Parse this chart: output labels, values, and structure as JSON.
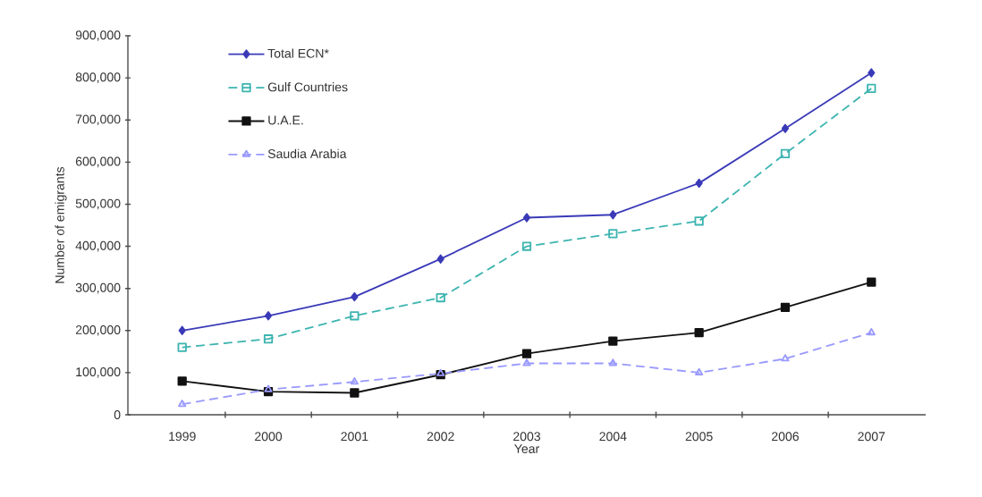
{
  "chart_data": {
    "type": "line",
    "xlabel": "Year",
    "ylabel": "Number of emigrants",
    "categories": [
      "1999",
      "2000",
      "2001",
      "2002",
      "2003",
      "2004",
      "2005",
      "2006",
      "2007"
    ],
    "series": [
      {
        "name": "Total ECN*",
        "color": "#3a3ab8",
        "marker": "diamond",
        "line_style": "solid",
        "values": [
          200000,
          235000,
          280000,
          370000,
          468000,
          475000,
          550000,
          680000,
          812000
        ]
      },
      {
        "name": "Gulf Countries",
        "color": "#3cb4b0",
        "marker": "square",
        "line_style": "dashed",
        "values": [
          160000,
          180000,
          235000,
          278000,
          400000,
          430000,
          460000,
          620000,
          775000
        ]
      },
      {
        "name": "U.A.E.",
        "color": "#111111",
        "marker": "square",
        "line_style": "solid",
        "values": [
          80000,
          55000,
          52000,
          95000,
          145000,
          175000,
          195000,
          255000,
          315000
        ]
      },
      {
        "name": "Saudia Arabia",
        "color": "#9999ff",
        "marker": "triangle",
        "line_style": "dashed",
        "values": [
          25000,
          60000,
          78000,
          98000,
          122000,
          122000,
          100000,
          133000,
          195000
        ]
      }
    ],
    "ylim": [
      0,
      900000
    ],
    "yticks": [
      0,
      {
        "value": 100000,
        "label": "100,000"
      },
      {
        "value": 200000,
        "label": "200,000"
      },
      {
        "value": 300000,
        "label": "300,000"
      },
      {
        "value": 400000,
        "label": "400,000"
      },
      {
        "value": 500000,
        "label": "500,000"
      },
      {
        "value": 600000,
        "label": "600,000"
      },
      {
        "value": 700000,
        "label": "700,000"
      },
      {
        "value": 800000,
        "label": "800,000"
      },
      {
        "value": 900000,
        "label": "900,000"
      }
    ],
    "grid": false,
    "legend": "top left"
  }
}
